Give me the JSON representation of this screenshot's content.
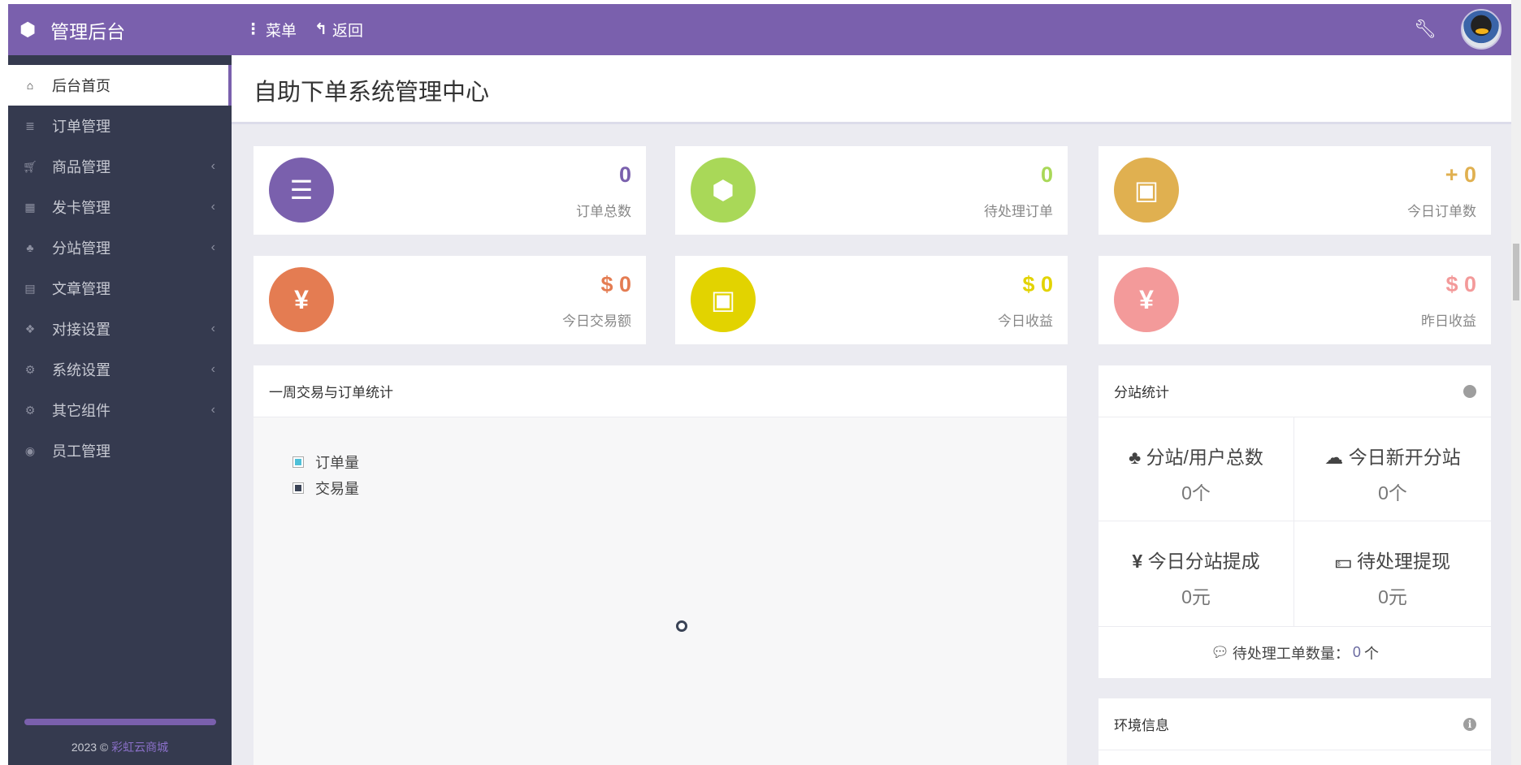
{
  "header": {
    "brand": "管理后台",
    "menu_label": "菜单",
    "back_label": "返回",
    "accent": "#7a60ad"
  },
  "sidebar": {
    "items": [
      {
        "label": "后台首页",
        "icon": "home-icon",
        "active": true
      },
      {
        "label": "订单管理",
        "icon": "list-icon"
      },
      {
        "label": "商品管理",
        "icon": "cart-icon",
        "submenu": true
      },
      {
        "label": "发卡管理",
        "icon": "grid-icon",
        "submenu": true
      },
      {
        "label": "分站管理",
        "icon": "sitemap-icon",
        "submenu": true
      },
      {
        "label": "文章管理",
        "icon": "book-icon"
      },
      {
        "label": "对接设置",
        "icon": "cubes-icon",
        "submenu": true
      },
      {
        "label": "系统设置",
        "icon": "gear-icon",
        "submenu": true
      },
      {
        "label": "其它组件",
        "icon": "gears-icon",
        "submenu": true
      },
      {
        "label": "员工管理",
        "icon": "user-circle-icon"
      }
    ],
    "footer_year": "2023 ©",
    "footer_link": "彩虹云商城"
  },
  "page": {
    "title": "自助下单系统管理中心"
  },
  "stats": [
    {
      "value": "0",
      "label": "订单总数",
      "color": "#7a60ad",
      "icon": "ordered-list-icon"
    },
    {
      "value": "0",
      "label": "待处理订单",
      "color": "#a9d858",
      "icon": "pending-icon"
    },
    {
      "value": "+ 0",
      "label": "今日订单数",
      "color": "#e0b050",
      "icon": "briefcase-icon"
    },
    {
      "value": "$ 0",
      "label": "今日交易额",
      "color": "#e47c52",
      "icon": "yen-icon"
    },
    {
      "value": "$ 0",
      "label": "今日收益",
      "color": "#e2d300",
      "icon": "briefcase-icon"
    },
    {
      "value": "$ 0",
      "label": "昨日收益",
      "color": "#f39a9a",
      "icon": "yen-icon"
    }
  ],
  "chart_panel": {
    "title": "一周交易与订单统计",
    "legend": [
      {
        "name": "订单量",
        "color": "#4fc0d8"
      },
      {
        "name": "交易量",
        "color": "#3a4356"
      }
    ]
  },
  "substation": {
    "title": "分站统计",
    "cells": [
      {
        "label": "分站/用户总数",
        "value": "0个",
        "icon": "sitemap-icon"
      },
      {
        "label": "今日新开分站",
        "value": "0个",
        "icon": "cloud-icon"
      },
      {
        "label": "今日分站提成",
        "value": "0元",
        "icon": "yen-icon"
      },
      {
        "label": "待处理提现",
        "value": "0元",
        "icon": "money-icon"
      }
    ],
    "ticket_label": "待处理工单数量：",
    "ticket_value": "0",
    "ticket_unit": "个"
  },
  "env": {
    "title": "环境信息"
  }
}
